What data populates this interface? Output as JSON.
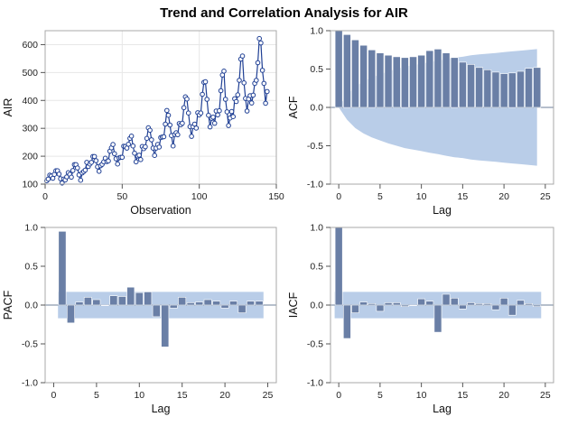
{
  "title": "Trend and Correlation Analysis for AIR",
  "colors": {
    "series": "#1f3f94",
    "bar": "#6a7fa6",
    "band": "#b9cde8",
    "zero": "#6e7f99",
    "frame": "#a9a9a9",
    "grid": "#e7e7e7"
  },
  "chart_data": [
    {
      "type": "line",
      "xlabel": "Observation",
      "ylabel": "AIR",
      "xlim": [
        0,
        150
      ],
      "ylim": [
        100,
        650
      ],
      "xticks": [
        "0",
        "50",
        "100",
        "150"
      ],
      "yticks": [
        "100",
        "200",
        "300",
        "400",
        "500",
        "600"
      ],
      "grid": true,
      "x_start": 1,
      "values": [
        112,
        118,
        132,
        129,
        121,
        135,
        148,
        148,
        136,
        119,
        104,
        118,
        115,
        126,
        141,
        135,
        125,
        149,
        170,
        170,
        158,
        133,
        114,
        140,
        145,
        150,
        178,
        163,
        172,
        178,
        199,
        199,
        184,
        162,
        146,
        166,
        171,
        180,
        193,
        181,
        183,
        218,
        230,
        242,
        209,
        191,
        172,
        194,
        196,
        196,
        236,
        235,
        229,
        243,
        264,
        272,
        237,
        211,
        180,
        201,
        204,
        188,
        235,
        227,
        234,
        264,
        302,
        293,
        259,
        229,
        203,
        229,
        242,
        233,
        267,
        269,
        270,
        315,
        364,
        347,
        312,
        274,
        237,
        278,
        284,
        277,
        317,
        313,
        318,
        374,
        413,
        405,
        355,
        306,
        271,
        306,
        315,
        301,
        356,
        348,
        355,
        422,
        465,
        467,
        404,
        347,
        305,
        336,
        340,
        318,
        362,
        348,
        363,
        435,
        491,
        505,
        404,
        359,
        310,
        337,
        360,
        342,
        406,
        396,
        420,
        472,
        548,
        559,
        463,
        407,
        362,
        405,
        417,
        391,
        419,
        461,
        472,
        535,
        622,
        606,
        508,
        461,
        390,
        432
      ]
    },
    {
      "type": "bar",
      "xlabel": "Lag",
      "ylabel": "ACF",
      "xlim": [
        -1,
        26
      ],
      "ylim": [
        -1.0,
        1.0
      ],
      "xticks": [
        "0",
        "5",
        "10",
        "15",
        "20",
        "25"
      ],
      "yticks": [
        "1.0",
        "0.5",
        "0.0",
        "-0.5",
        "-1.0"
      ],
      "lags": [
        0,
        1,
        2,
        3,
        4,
        5,
        6,
        7,
        8,
        9,
        10,
        11,
        12,
        13,
        14,
        15,
        16,
        17,
        18,
        19,
        20,
        21,
        22,
        23,
        24
      ],
      "values": [
        1.0,
        0.95,
        0.88,
        0.81,
        0.75,
        0.71,
        0.68,
        0.66,
        0.65,
        0.66,
        0.68,
        0.74,
        0.76,
        0.71,
        0.65,
        0.59,
        0.56,
        0.52,
        0.49,
        0.46,
        0.44,
        0.45,
        0.47,
        0.51,
        0.52
      ],
      "band": [
        0.0,
        0.16,
        0.27,
        0.34,
        0.39,
        0.43,
        0.47,
        0.5,
        0.53,
        0.55,
        0.57,
        0.59,
        0.61,
        0.63,
        0.65,
        0.66,
        0.68,
        0.69,
        0.7,
        0.71,
        0.72,
        0.73,
        0.74,
        0.75,
        0.76
      ]
    },
    {
      "type": "bar",
      "xlabel": "Lag",
      "ylabel": "PACF",
      "xlim": [
        -1,
        26
      ],
      "ylim": [
        -1.0,
        1.0
      ],
      "xticks": [
        "0",
        "5",
        "10",
        "15",
        "20",
        "25"
      ],
      "yticks": [
        "1.0",
        "0.5",
        "0.0",
        "-0.5",
        "-1.0"
      ],
      "lags": [
        1,
        2,
        3,
        4,
        5,
        6,
        7,
        8,
        9,
        10,
        11,
        12,
        13,
        14,
        15,
        16,
        17,
        18,
        19,
        20,
        21,
        22,
        23,
        24
      ],
      "values": [
        0.95,
        -0.23,
        0.04,
        0.1,
        0.07,
        0.0,
        0.12,
        0.11,
        0.23,
        0.16,
        0.17,
        -0.15,
        -0.54,
        -0.04,
        0.1,
        0.03,
        0.04,
        0.07,
        0.05,
        -0.04,
        0.05,
        -0.1,
        0.05,
        0.05
      ],
      "band": 0.17
    },
    {
      "type": "bar",
      "xlabel": "Lag",
      "ylabel": "IACF",
      "xlim": [
        -1,
        26
      ],
      "ylim": [
        -1.0,
        1.0
      ],
      "xticks": [
        "0",
        "5",
        "10",
        "15",
        "20",
        "25"
      ],
      "yticks": [
        "1.0",
        "0.5",
        "0.0",
        "-0.5",
        "-1.0"
      ],
      "lags": [
        0,
        1,
        2,
        3,
        4,
        5,
        6,
        7,
        8,
        9,
        10,
        11,
        12,
        13,
        14,
        15,
        16,
        17,
        18,
        19,
        20,
        21,
        22,
        23,
        24
      ],
      "values": [
        1.0,
        -0.43,
        -0.1,
        0.04,
        0.02,
        -0.08,
        0.03,
        0.03,
        -0.02,
        0.0,
        0.08,
        0.05,
        -0.35,
        0.14,
        0.09,
        -0.05,
        0.03,
        0.02,
        0.02,
        -0.06,
        0.09,
        -0.13,
        0.06,
        0.02,
        -0.02
      ],
      "band": 0.17
    }
  ]
}
